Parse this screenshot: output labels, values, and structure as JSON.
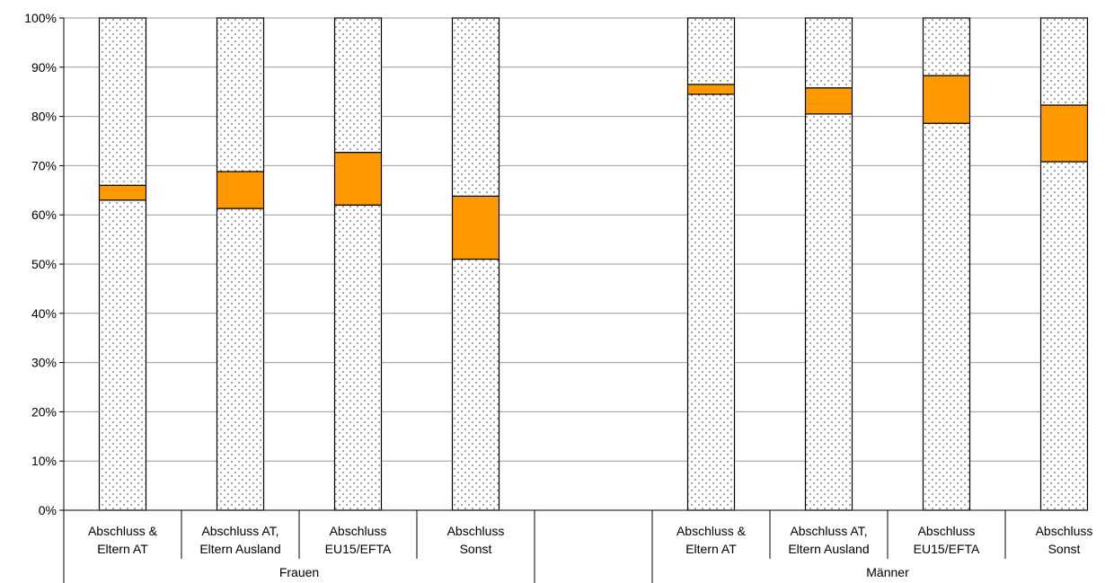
{
  "chart_data": {
    "type": "bar",
    "stacked": true,
    "ylim": [
      0,
      100
    ],
    "y_ticks": [
      "0%",
      "10%",
      "20%",
      "30%",
      "40%",
      "50%",
      "60%",
      "70%",
      "80%",
      "90%",
      "100%"
    ],
    "grid": "horizontal",
    "groups": [
      {
        "label": "Frauen",
        "categories": [
          {
            "lines": [
              "Abschluss &",
              "Eltern AT"
            ],
            "segments": [
              63.0,
              3.0,
              34.0
            ]
          },
          {
            "lines": [
              "Abschluss AT,",
              "Eltern Ausland"
            ],
            "segments": [
              61.3,
              7.5,
              31.2
            ]
          },
          {
            "lines": [
              "Abschluss",
              "EU15/EFTA"
            ],
            "segments": [
              62.0,
              10.7,
              27.3
            ]
          },
          {
            "lines": [
              "Abschluss",
              "Sonst"
            ],
            "segments": [
              51.0,
              12.8,
              36.2
            ]
          }
        ]
      },
      {
        "label": "Männer",
        "categories": [
          {
            "lines": [
              "Abschluss &",
              "Eltern AT"
            ],
            "segments": [
              84.5,
              2.0,
              13.5
            ]
          },
          {
            "lines": [
              "Abschluss AT,",
              "Eltern Ausland"
            ],
            "segments": [
              80.5,
              5.3,
              14.2
            ]
          },
          {
            "lines": [
              "Abschluss",
              "EU15/EFTA"
            ],
            "segments": [
              78.6,
              9.7,
              11.7
            ]
          },
          {
            "lines": [
              "Abschluss",
              "Sonst"
            ],
            "segments": [
              70.8,
              11.5,
              17.7
            ]
          }
        ]
      }
    ],
    "segment_styles": [
      "dotted",
      "#FF9900",
      "dotted"
    ]
  }
}
